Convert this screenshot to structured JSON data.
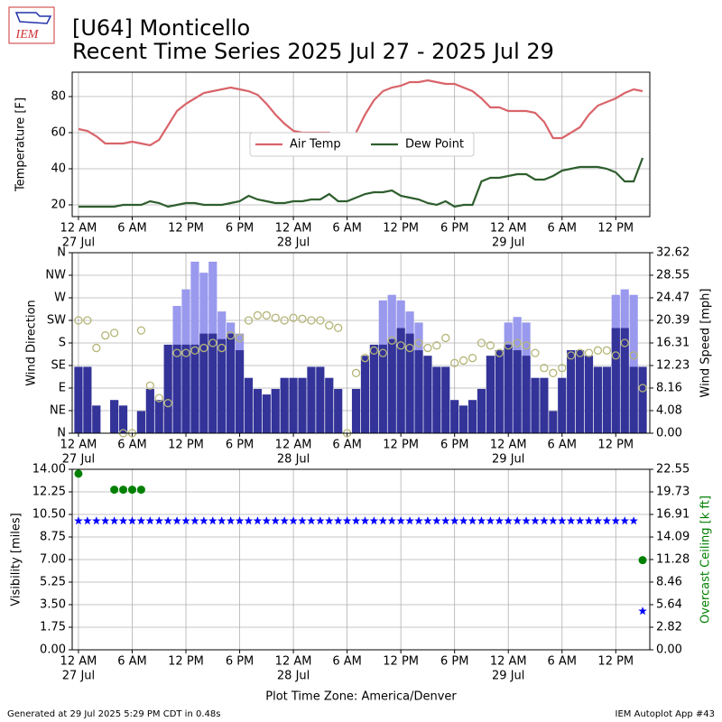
{
  "header": {
    "title": "[U64] Monticello",
    "subtitle": "Recent Time Series 2025 Jul 27 - 2025 Jul 29",
    "logo_text": "IEM"
  },
  "footer": {
    "left": "Generated at 29 Jul 2025 5:29 PM CDT in 0.48s",
    "right": "IEM Autoplot App #43"
  },
  "time_axis": {
    "label": "Plot Time Zone: America/Denver",
    "xlim": [
      -0.7,
      63.8
    ],
    "x": [
      0,
      1,
      2,
      3,
      4,
      5,
      6,
      7,
      8,
      9,
      10,
      11,
      12,
      13,
      14,
      15,
      16,
      17,
      18,
      19,
      20,
      21,
      22,
      23,
      24,
      25,
      26,
      27,
      28,
      29,
      30,
      31,
      32,
      33,
      34,
      35,
      36,
      37,
      38,
      39,
      40,
      41,
      42,
      43,
      44,
      45,
      46,
      47,
      48,
      49,
      50,
      51,
      52,
      53,
      54,
      55,
      56,
      57,
      58,
      59,
      60,
      61,
      62,
      63
    ],
    "xticks": [
      {
        "value": 0,
        "label": "12 AM"
      },
      {
        "value": 6,
        "label": "6 AM"
      },
      {
        "value": 12,
        "label": "12 PM"
      },
      {
        "value": 18,
        "label": "6 PM"
      },
      {
        "value": 24,
        "label": "12 AM"
      },
      {
        "value": 30,
        "label": "6 AM"
      },
      {
        "value": 36,
        "label": "12 PM"
      },
      {
        "value": 42,
        "label": "6 PM"
      },
      {
        "value": 48,
        "label": "12 AM"
      },
      {
        "value": 54,
        "label": "6 AM"
      },
      {
        "value": 60,
        "label": "12 PM"
      }
    ],
    "date_ticks": [
      {
        "value": 0,
        "label": "27 Jul"
      },
      {
        "value": 24,
        "label": "28 Jul"
      },
      {
        "value": 48,
        "label": "29 Jul"
      }
    ]
  },
  "chart_data": [
    {
      "type": "line",
      "ylabel": "Temperature [F]",
      "ylim": [
        13.5,
        93.5
      ],
      "yticks": [
        20,
        40,
        60,
        80
      ],
      "grid": true,
      "legend": "upper center",
      "series": [
        {
          "name": "Air Temp",
          "color": "#d9646a",
          "values": [
            62,
            61,
            58,
            54,
            54,
            54,
            55,
            54,
            53,
            56,
            64,
            72,
            76,
            79,
            82,
            83,
            84,
            85,
            84,
            83,
            81,
            76,
            70,
            65,
            61,
            60,
            60,
            60,
            60,
            58,
            57,
            60,
            70,
            78,
            83,
            85,
            86,
            88,
            88,
            89,
            88,
            87,
            87,
            85,
            83,
            79,
            74,
            74,
            72,
            72,
            72,
            71,
            66,
            57,
            57,
            60,
            63,
            70,
            75,
            77,
            79,
            82,
            84,
            83
          ]
        },
        {
          "name": "Dew Point",
          "color": "#2e5e2e",
          "values": [
            19,
            19,
            19,
            19,
            19,
            20,
            20,
            20,
            22,
            21,
            19,
            20,
            21,
            21,
            20,
            20,
            20,
            21,
            22,
            25,
            23,
            22,
            21,
            21,
            22,
            22,
            23,
            23,
            26,
            22,
            22,
            24,
            26,
            27,
            27,
            28,
            25,
            24,
            23,
            21,
            20,
            22,
            19,
            20,
            20,
            33,
            35,
            35,
            36,
            37,
            37,
            34,
            34,
            36,
            39,
            40,
            41,
            41,
            41,
            40,
            38,
            33,
            33,
            46
          ]
        }
      ]
    },
    {
      "type": "wind",
      "ylabel": "Wind Direction",
      "y2label": "Wind Speed [mph]",
      "ylim": [
        0,
        360
      ],
      "yticks": [
        {
          "value": 0,
          "label": "N"
        },
        {
          "value": 45,
          "label": "NE"
        },
        {
          "value": 90,
          "label": "E"
        },
        {
          "value": 135,
          "label": "SE"
        },
        {
          "value": 180,
          "label": "S"
        },
        {
          "value": 225,
          "label": "SW"
        },
        {
          "value": 270,
          "label": "W"
        },
        {
          "value": 315,
          "label": "NW"
        },
        {
          "value": 360,
          "label": "N"
        }
      ],
      "y2lim": [
        0,
        32.62
      ],
      "y2ticks": [
        {
          "value": 0,
          "label": "0.00"
        },
        4.08,
        8.16,
        12.23,
        16.31,
        20.39,
        24.47,
        28.55,
        32.62
      ],
      "grid": true,
      "series": [
        {
          "kind": "bar",
          "axis": "y2",
          "color": "#9999ee",
          "values": [
            null,
            null,
            null,
            null,
            null,
            null,
            null,
            null,
            null,
            null,
            null,
            23,
            26,
            31,
            29,
            31,
            22,
            20,
            18,
            null,
            null,
            null,
            null,
            null,
            null,
            null,
            null,
            null,
            null,
            null,
            null,
            null,
            null,
            null,
            24,
            25,
            24,
            22,
            20,
            null,
            null,
            null,
            null,
            null,
            null,
            null,
            null,
            null,
            20,
            21,
            20,
            null,
            null,
            null,
            null,
            null,
            null,
            null,
            null,
            null,
            25,
            26,
            25,
            null
          ]
        },
        {
          "kind": "bar",
          "axis": "y2",
          "color": "#333399",
          "values": [
            12,
            12,
            5,
            0,
            6,
            5,
            0,
            4,
            8,
            6,
            16,
            16,
            16,
            16,
            18,
            18,
            17,
            18,
            15,
            10,
            8,
            7,
            8,
            10,
            10,
            10,
            12,
            12,
            10,
            8,
            0,
            8,
            14,
            16,
            16,
            17,
            19,
            18,
            15,
            14,
            12,
            12,
            6,
            5,
            6,
            8,
            14,
            15,
            16,
            15,
            14,
            10,
            10,
            4,
            10,
            15,
            15,
            14,
            12,
            12,
            19,
            19,
            12,
            12
          ]
        },
        {
          "kind": "point",
          "color": "#b5b577",
          "values": [
            225,
            225,
            170,
            195,
            200,
            0,
            0,
            205,
            95,
            70,
            60,
            160,
            160,
            165,
            170,
            180,
            170,
            195,
            190,
            225,
            235,
            235,
            230,
            225,
            230,
            228,
            225,
            225,
            215,
            210,
            0,
            120,
            150,
            165,
            160,
            185,
            175,
            170,
            180,
            170,
            175,
            190,
            140,
            145,
            150,
            180,
            175,
            160,
            175,
            180,
            175,
            160,
            130,
            120,
            130,
            155,
            160,
            160,
            165,
            165,
            155,
            180,
            155,
            90
          ]
        }
      ]
    },
    {
      "type": "scatter",
      "ylabel": "Visibility [miles]",
      "y2label": "Overcast Ceiling [k ft]",
      "y2label_color": "green",
      "ylim": [
        0,
        14
      ],
      "yticks": [
        {
          "value": 0,
          "label": "0.00"
        },
        1.75,
        {
          "value": 3.5,
          "label": "3.50"
        },
        5.25,
        {
          "value": 7,
          "label": "7.00"
        },
        8.75,
        {
          "value": 10.5,
          "label": "10.50"
        },
        12.25,
        {
          "value": 14,
          "label": "14.00"
        }
      ],
      "y2lim": [
        0,
        22.55
      ],
      "y2ticks": [
        {
          "value": 0,
          "label": "0.00"
        },
        2.82,
        5.64,
        8.46,
        11.28,
        14.09,
        16.91,
        19.73,
        22.55
      ],
      "grid": true,
      "series": [
        {
          "marker": "star",
          "color": "#0000ff",
          "values": [
            10,
            10,
            10,
            10,
            10,
            10,
            10,
            10,
            10,
            10,
            10,
            10,
            10,
            10,
            10,
            10,
            10,
            10,
            10,
            10,
            10,
            10,
            10,
            10,
            10,
            10,
            10,
            10,
            10,
            10,
            10,
            10,
            10,
            10,
            10,
            10,
            10,
            10,
            10,
            10,
            10,
            10,
            10,
            10,
            10,
            10,
            10,
            10,
            10,
            10,
            10,
            10,
            10,
            10,
            10,
            10,
            10,
            10,
            10,
            10,
            10,
            10,
            10,
            3
          ]
        },
        {
          "marker": "circle",
          "axis": "y2",
          "color": "#008000",
          "values": [
            22,
            null,
            null,
            null,
            20,
            20,
            20,
            20,
            null,
            null,
            null,
            null,
            null,
            null,
            null,
            null,
            null,
            null,
            null,
            null,
            null,
            null,
            null,
            null,
            null,
            null,
            null,
            null,
            null,
            null,
            null,
            null,
            null,
            null,
            null,
            null,
            null,
            null,
            null,
            null,
            null,
            null,
            null,
            null,
            null,
            null,
            null,
            null,
            null,
            null,
            null,
            null,
            null,
            null,
            null,
            null,
            null,
            null,
            null,
            null,
            null,
            null,
            null,
            11.2
          ]
        }
      ]
    }
  ]
}
